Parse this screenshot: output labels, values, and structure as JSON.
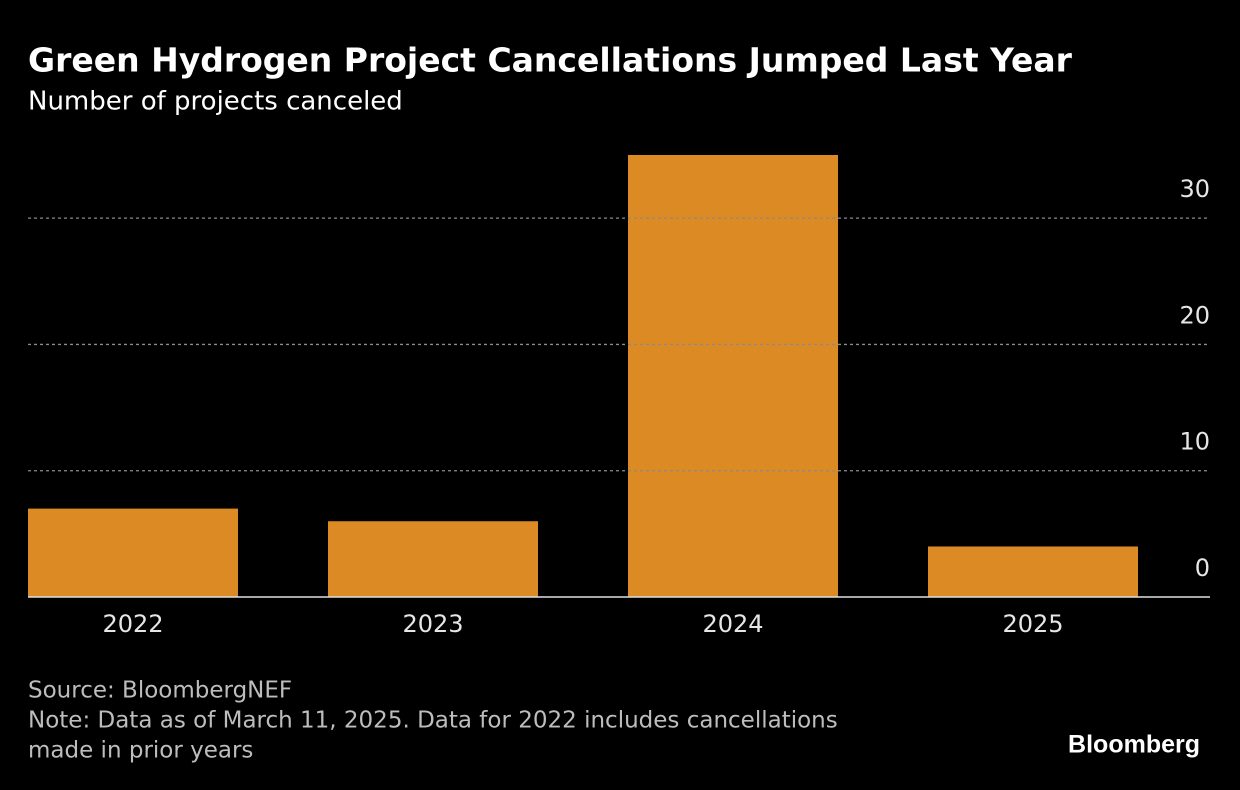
{
  "chart_data": {
    "type": "bar",
    "title": "Green Hydrogen Project Cancellations Jumped Last Year",
    "subtitle": "Number of projects canceled",
    "categories": [
      "2022",
      "2023",
      "2024",
      "2025"
    ],
    "values": [
      7,
      6,
      35,
      4
    ],
    "color": "#dc8a24",
    "ylim": [
      0,
      35
    ],
    "yticks": [
      0,
      10,
      20,
      30
    ],
    "grid": true,
    "source": "Source: BloombergNEF",
    "note": [
      "Note: Data as of March 11, 2025. Data for 2022 includes cancellations",
      "made in prior years"
    ],
    "brand": "Bloomberg"
  }
}
